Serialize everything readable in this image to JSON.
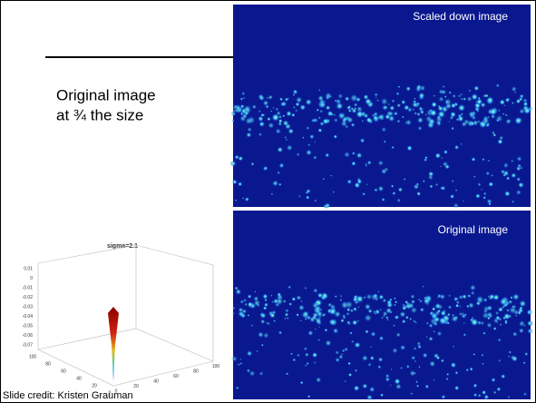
{
  "slide": {
    "heading": [
      "Original image",
      "at ¾ the size"
    ],
    "images": [
      {
        "caption": "Scaled down image"
      },
      {
        "caption": "Original image"
      }
    ],
    "plot": {
      "title": "sigma=2.1",
      "z_ticks": [
        0.01,
        0,
        -0.01,
        -0.02,
        -0.03,
        -0.04,
        -0.05,
        -0.06,
        -0.07
      ],
      "x_ticks": [
        100,
        80,
        60,
        40,
        20,
        0
      ],
      "y_ticks": [
        0,
        20,
        40,
        60,
        80,
        100
      ]
    },
    "credit": "Slide credit: Kristen Grauman"
  }
}
